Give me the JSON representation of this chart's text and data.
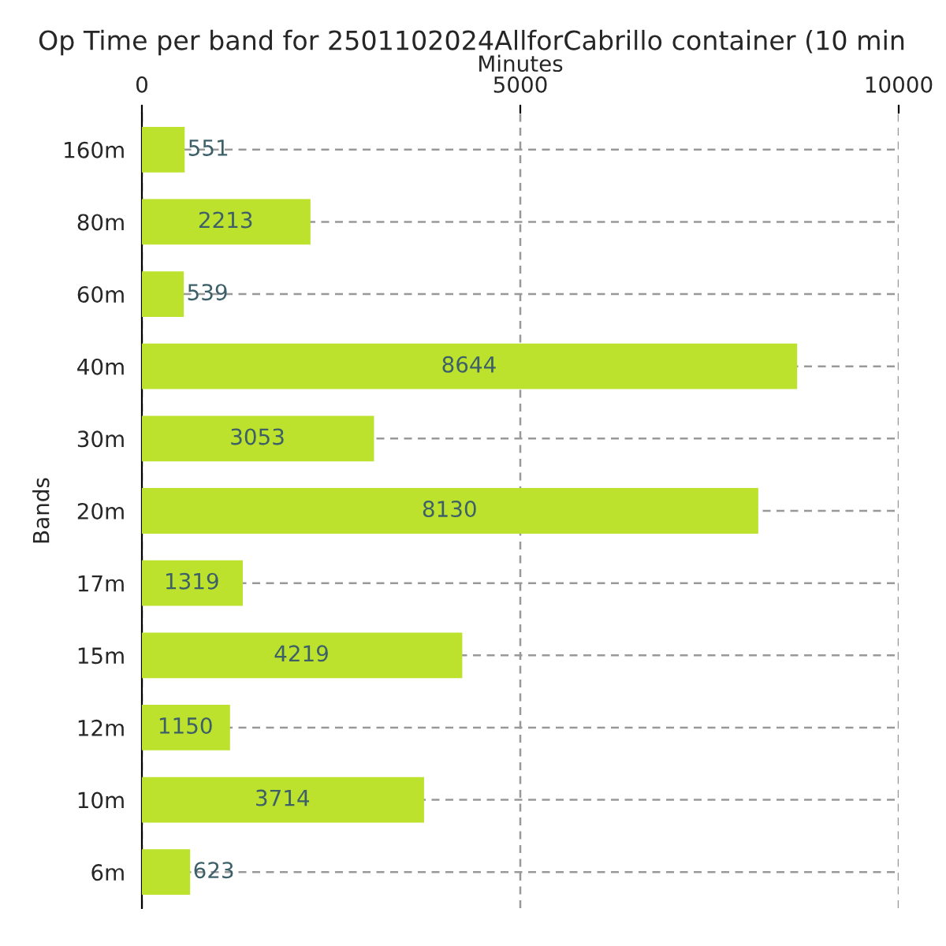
{
  "chart_data": {
    "type": "bar",
    "orientation": "horizontal",
    "title": "Op Time per band for 2501102024AllforCabrillo container (10 min",
    "xlabel": "Minutes",
    "ylabel": "Bands",
    "categories": [
      "160m",
      "80m",
      "60m",
      "40m",
      "30m",
      "20m",
      "17m",
      "15m",
      "12m",
      "10m",
      "6m"
    ],
    "values": [
      551,
      2213,
      539,
      8644,
      3053,
      8130,
      1319,
      4219,
      1150,
      3714,
      623
    ],
    "color": "#bde22e",
    "xlim": [
      0,
      10000
    ],
    "xticks": [
      0,
      5000,
      10000
    ],
    "grid": true,
    "data_labels": true
  }
}
